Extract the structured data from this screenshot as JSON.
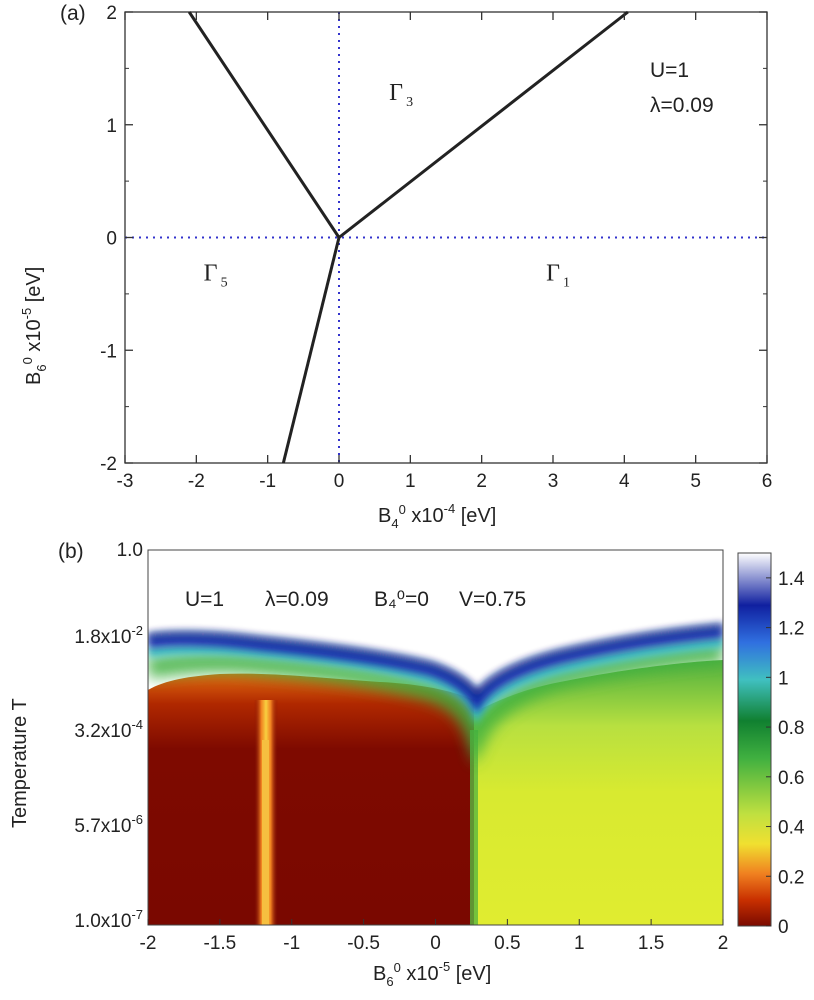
{
  "chart_data": [
    {
      "type": "line",
      "panel_label": "(a)",
      "xlabel": {
        "base": "B",
        "sub": "4",
        "sup": "0",
        "rest": " x10",
        "exp": "-4",
        "unit": " [eV]"
      },
      "ylabel": {
        "base": "B",
        "sub": "6",
        "sup": "0",
        "rest": " x10",
        "exp": "-5",
        "unit": " [eV]"
      },
      "xlim": [
        -3,
        6
      ],
      "ylim": [
        -2,
        2
      ],
      "x_ticks": [
        "-3",
        "-2",
        "-1",
        "0",
        "1",
        "2",
        "3",
        "4",
        "5",
        "6"
      ],
      "y_ticks": [
        "-2",
        "-1",
        "0",
        "1",
        "2"
      ],
      "series": [
        {
          "x": [
            0,
            -2.1
          ],
          "y": [
            0,
            2
          ]
        },
        {
          "x": [
            0,
            4.05
          ],
          "y": [
            0,
            2
          ]
        },
        {
          "x": [
            0,
            -0.78
          ],
          "y": [
            0,
            -2
          ]
        }
      ],
      "reference_lines": {
        "x": 0,
        "y": 0,
        "style": "dotted",
        "color": "#3333cc"
      },
      "region_labels": [
        {
          "symbol": "Γ",
          "sub": "3",
          "x": 0.8,
          "y": 1.22
        },
        {
          "symbol": "Γ",
          "sub": "5",
          "x": -1.8,
          "y": -0.38
        },
        {
          "symbol": "Γ",
          "sub": "1",
          "x": 3.0,
          "y": -0.38
        }
      ],
      "annotations": [
        "U=1",
        "λ=0.09"
      ]
    },
    {
      "type": "heatmap",
      "panel_label": "(b)",
      "xlabel": {
        "base": "B",
        "sub": "6",
        "sup": "0",
        "rest": " x10",
        "exp": "-5",
        "unit": " [eV]"
      },
      "ylabel": "Temperature T",
      "xlim": [
        -2,
        2
      ],
      "y_scale": "log",
      "ylim": [
        1e-07,
        1.0
      ],
      "x_ticks": [
        "-2",
        "-1.5",
        "-1",
        "-0.5",
        "0",
        "0.5",
        "1",
        "1.5",
        "2"
      ],
      "y_ticks": [
        {
          "mant": "1.0",
          "exp": ""
        },
        {
          "mant": "1.8x10",
          "exp": "-2"
        },
        {
          "mant": "3.2x10",
          "exp": "-4"
        },
        {
          "mant": "5.7x10",
          "exp": "-6"
        },
        {
          "mant": "1.0x10",
          "exp": "-7"
        }
      ],
      "colorbar": {
        "ticks": [
          "0",
          "0.2",
          "0.4",
          "0.6",
          "0.8",
          "1",
          "1.2",
          "1.4"
        ],
        "range": [
          0,
          1.5
        ],
        "colors": [
          "#7a0a00",
          "#c93000",
          "#f08020",
          "#f0e030",
          "#c0e040",
          "#40b040",
          "#108030",
          "#40c0c0",
          "#3070e0",
          "#1020a0",
          "#ffffff"
        ]
      },
      "annotations": [
        "U=1",
        "λ=0.09",
        "B₄⁰=0",
        "V=0.75"
      ],
      "features": {
        "high_T_value": 1.5,
        "boundary_band_value": 1.3,
        "low_T_left_value": 0.02,
        "low_T_right_value": 0.35,
        "dip_x": -1.25,
        "step_x": 0.28
      }
    }
  ]
}
